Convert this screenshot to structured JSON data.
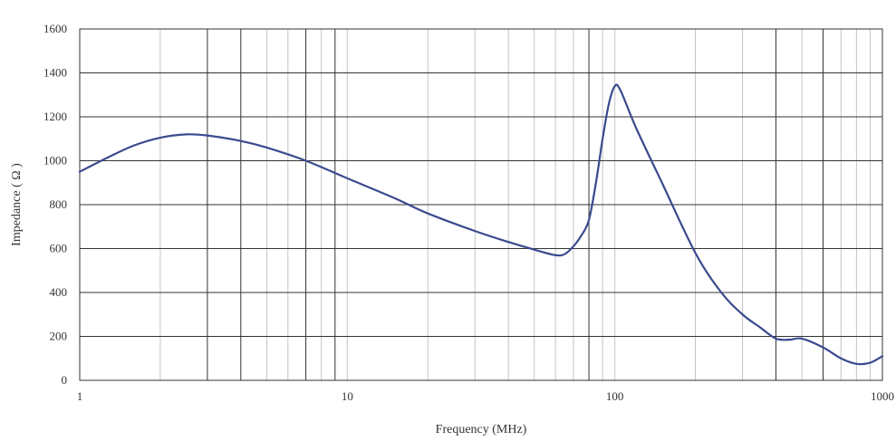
{
  "chart_data": {
    "type": "line",
    "title": "",
    "xlabel": "Frequency (MHz)",
    "ylabel": "Impedance ( Ω )",
    "x_scale": "log",
    "xlim": [
      1,
      1000
    ],
    "ylim": [
      0,
      1600
    ],
    "x_ticks": [
      1,
      10,
      100,
      1000
    ],
    "x_tick_labels": [
      "1",
      "10",
      "100",
      "1000"
    ],
    "y_ticks": [
      0,
      200,
      400,
      600,
      800,
      1000,
      1200,
      1400,
      1600
    ],
    "y_tick_labels": [
      "0",
      "200",
      "400",
      "600",
      "800",
      "1000",
      "1200",
      "1400",
      "1600"
    ],
    "grid": true,
    "major_vertical_grid_at": [
      3,
      4,
      7,
      9,
      80,
      400,
      600
    ],
    "line_color": "#3b4a8e",
    "series": [
      {
        "name": "",
        "points": [
          [
            1,
            950
          ],
          [
            1.3,
            1020
          ],
          [
            1.6,
            1070
          ],
          [
            2,
            1105
          ],
          [
            2.5,
            1120
          ],
          [
            3,
            1115
          ],
          [
            4,
            1090
          ],
          [
            5,
            1060
          ],
          [
            7,
            1000
          ],
          [
            10,
            920
          ],
          [
            15,
            830
          ],
          [
            20,
            760
          ],
          [
            30,
            680
          ],
          [
            40,
            630
          ],
          [
            50,
            595
          ],
          [
            60,
            570
          ],
          [
            65,
            575
          ],
          [
            70,
            610
          ],
          [
            75,
            660
          ],
          [
            80,
            730
          ],
          [
            85,
            900
          ],
          [
            90,
            1100
          ],
          [
            95,
            1260
          ],
          [
            100,
            1340
          ],
          [
            105,
            1320
          ],
          [
            120,
            1150
          ],
          [
            150,
            900
          ],
          [
            200,
            580
          ],
          [
            250,
            400
          ],
          [
            300,
            300
          ],
          [
            350,
            240
          ],
          [
            400,
            190
          ],
          [
            450,
            185
          ],
          [
            500,
            190
          ],
          [
            600,
            150
          ],
          [
            700,
            100
          ],
          [
            800,
            75
          ],
          [
            900,
            80
          ],
          [
            1000,
            110
          ]
        ]
      }
    ]
  }
}
